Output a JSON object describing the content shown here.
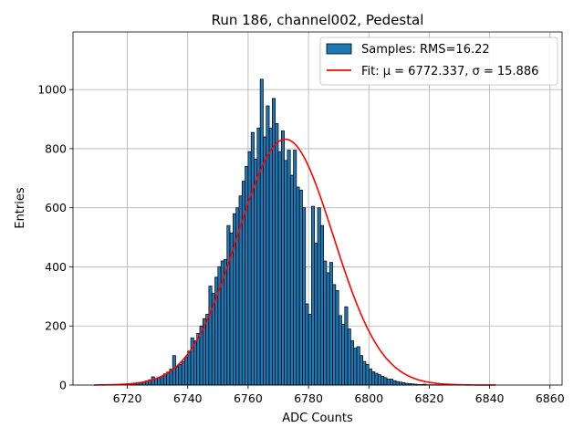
{
  "chart_data": {
    "type": "bar",
    "title": "Run 186, channel002, Pedestal",
    "xlabel": "ADC Counts",
    "ylabel": "Entries",
    "xlim": [
      6702,
      6864
    ],
    "ylim": [
      0,
      1195
    ],
    "xticks": [
      6720,
      6740,
      6760,
      6780,
      6800,
      6820,
      6840,
      6860
    ],
    "yticks": [
      0,
      200,
      400,
      600,
      800,
      1000
    ],
    "grid": true,
    "legend": {
      "position": "top-right",
      "hist_label": "Samples: RMS=16.22",
      "fit_label": "Fit: μ = 6772.337, σ = 15.886"
    },
    "colors": {
      "bars": "#1f77b4",
      "bar_edge": "#000000",
      "fit": "#ff0000"
    },
    "bin_width": 1,
    "bin_starts": [
      6721,
      6722,
      6723,
      6724,
      6725,
      6726,
      6727,
      6728,
      6729,
      6730,
      6731,
      6732,
      6733,
      6734,
      6735,
      6736,
      6737,
      6738,
      6739,
      6740,
      6741,
      6742,
      6743,
      6744,
      6745,
      6746,
      6747,
      6748,
      6749,
      6750,
      6751,
      6752,
      6753,
      6754,
      6755,
      6756,
      6757,
      6758,
      6759,
      6760,
      6761,
      6762,
      6763,
      6764,
      6765,
      6766,
      6767,
      6768,
      6769,
      6770,
      6771,
      6772,
      6773,
      6774,
      6775,
      6776,
      6777,
      6778,
      6779,
      6780,
      6781,
      6782,
      6783,
      6784,
      6785,
      6786,
      6787,
      6788,
      6789,
      6790,
      6791,
      6792,
      6793,
      6794,
      6795,
      6796,
      6797,
      6798,
      6799,
      6800,
      6801,
      6802,
      6803,
      6804,
      6805,
      6806,
      6807,
      6808,
      6809,
      6810,
      6811,
      6812,
      6813,
      6814,
      6815,
      6816,
      6817,
      6818,
      6819,
      6820,
      6821,
      6822,
      6823,
      6824,
      6825,
      6826,
      6827,
      6828,
      6829,
      6830
    ],
    "counts": [
      4,
      5,
      7,
      9,
      11,
      14,
      18,
      28,
      22,
      26,
      30,
      38,
      44,
      54,
      100,
      62,
      70,
      80,
      95,
      115,
      160,
      150,
      175,
      200,
      225,
      240,
      335,
      310,
      365,
      400,
      420,
      425,
      540,
      515,
      580,
      600,
      640,
      690,
      740,
      790,
      855,
      765,
      870,
      1035,
      840,
      945,
      870,
      970,
      885,
      790,
      860,
      760,
      795,
      710,
      795,
      670,
      660,
      600,
      275,
      240,
      605,
      480,
      600,
      540,
      420,
      380,
      415,
      340,
      320,
      235,
      205,
      265,
      190,
      150,
      125,
      130,
      100,
      80,
      70,
      55,
      45,
      40,
      35,
      30,
      25,
      20,
      20,
      15,
      12,
      10,
      8,
      6,
      5,
      4,
      3,
      2,
      2,
      3,
      1,
      1,
      1,
      1,
      1,
      1,
      1,
      1,
      1,
      1,
      1,
      1
    ],
    "fit": {
      "mu": 6772.337,
      "sigma": 15.886,
      "amplitude": 832,
      "x_range": [
        6709,
        6842
      ]
    }
  }
}
